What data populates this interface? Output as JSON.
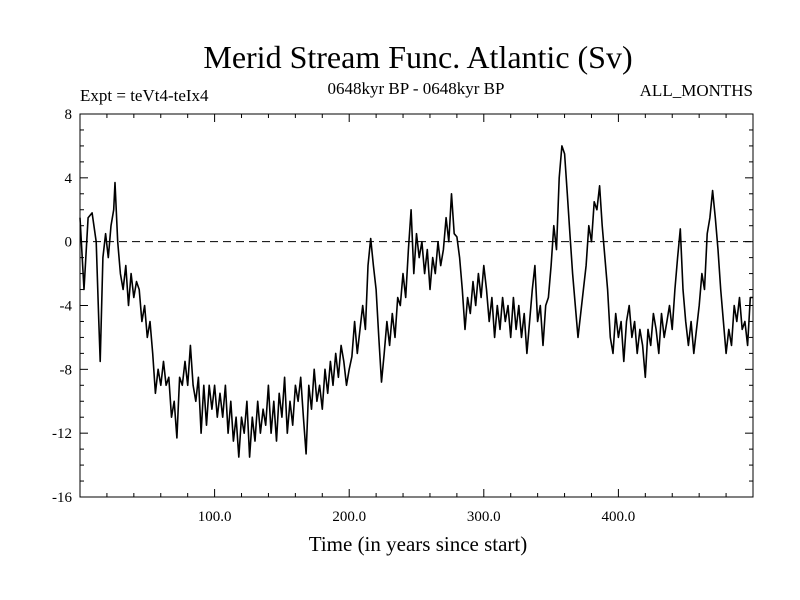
{
  "title": "Merid Stream Func. Atlantic (Sv)",
  "left_label": "Expt = teVt4-teIx4",
  "center_label": "0648kyr BP - 0648kyr BP",
  "right_label": "ALL_MONTHS",
  "chart_data": {
    "type": "line",
    "title": "Merid Stream Func. Atlantic (Sv)",
    "xlabel": "Time (in years since start)",
    "ylabel": "",
    "xlim": [
      0,
      500
    ],
    "ylim": [
      -16,
      8
    ],
    "x_ticks": [
      100,
      200,
      300,
      400
    ],
    "x_tick_labels": [
      "100.0",
      "200.0",
      "300.0",
      "400.0"
    ],
    "y_ticks": [
      8,
      4,
      0,
      -4,
      -8,
      -12,
      -16
    ],
    "y_tick_labels": [
      "8",
      "4",
      "0",
      "-4",
      "-8",
      "-12",
      "-16"
    ],
    "reference_line": {
      "y": 0,
      "style": "dashed"
    },
    "grid": false,
    "series": [
      {
        "points": [
          [
            0,
            1.5
          ],
          [
            3,
            -3
          ],
          [
            6,
            1.5
          ],
          [
            9,
            1.8
          ],
          [
            12,
            0
          ],
          [
            14,
            -5
          ],
          [
            15,
            -7.5
          ],
          [
            17,
            -1
          ],
          [
            19,
            0.5
          ],
          [
            21,
            -1
          ],
          [
            23,
            1
          ],
          [
            25,
            2
          ],
          [
            26,
            3.7
          ],
          [
            28,
            0
          ],
          [
            30,
            -2
          ],
          [
            32,
            -3
          ],
          [
            34,
            -1.5
          ],
          [
            36,
            -4
          ],
          [
            38,
            -2
          ],
          [
            40,
            -3.5
          ],
          [
            42,
            -2.5
          ],
          [
            44,
            -3
          ],
          [
            46,
            -5
          ],
          [
            48,
            -4
          ],
          [
            50,
            -6
          ],
          [
            52,
            -5
          ],
          [
            54,
            -7
          ],
          [
            56,
            -9.5
          ],
          [
            58,
            -8
          ],
          [
            60,
            -9
          ],
          [
            62,
            -7.5
          ],
          [
            64,
            -9
          ],
          [
            66,
            -8.5
          ],
          [
            68,
            -11
          ],
          [
            70,
            -10
          ],
          [
            72,
            -12.3
          ],
          [
            74,
            -8.5
          ],
          [
            76,
            -9
          ],
          [
            78,
            -7.5
          ],
          [
            80,
            -9
          ],
          [
            82,
            -6.5
          ],
          [
            84,
            -9
          ],
          [
            86,
            -10
          ],
          [
            88,
            -8.5
          ],
          [
            90,
            -12
          ],
          [
            92,
            -9
          ],
          [
            94,
            -11.5
          ],
          [
            96,
            -9
          ],
          [
            98,
            -10.5
          ],
          [
            100,
            -9
          ],
          [
            102,
            -11
          ],
          [
            104,
            -9.5
          ],
          [
            106,
            -11
          ],
          [
            108,
            -9
          ],
          [
            110,
            -12
          ],
          [
            112,
            -10
          ],
          [
            114,
            -12.5
          ],
          [
            116,
            -11
          ],
          [
            118,
            -13.5
          ],
          [
            120,
            -11
          ],
          [
            122,
            -12
          ],
          [
            124,
            -10
          ],
          [
            126,
            -13.5
          ],
          [
            128,
            -11
          ],
          [
            130,
            -12.5
          ],
          [
            132,
            -10
          ],
          [
            134,
            -12
          ],
          [
            136,
            -10.5
          ],
          [
            138,
            -11.5
          ],
          [
            140,
            -9
          ],
          [
            142,
            -12
          ],
          [
            144,
            -10
          ],
          [
            146,
            -12.5
          ],
          [
            148,
            -9.5
          ],
          [
            150,
            -11
          ],
          [
            152,
            -8.5
          ],
          [
            154,
            -12
          ],
          [
            156,
            -10
          ],
          [
            158,
            -11.5
          ],
          [
            160,
            -9
          ],
          [
            162,
            -10
          ],
          [
            164,
            -8.5
          ],
          [
            166,
            -11
          ],
          [
            168,
            -13.3
          ],
          [
            170,
            -9
          ],
          [
            172,
            -10.5
          ],
          [
            174,
            -8
          ],
          [
            176,
            -10
          ],
          [
            178,
            -9
          ],
          [
            180,
            -10.5
          ],
          [
            182,
            -8
          ],
          [
            184,
            -9.5
          ],
          [
            186,
            -7.5
          ],
          [
            188,
            -9
          ],
          [
            190,
            -7
          ],
          [
            192,
            -8.5
          ],
          [
            194,
            -6.5
          ],
          [
            196,
            -7.5
          ],
          [
            198,
            -9
          ],
          [
            200,
            -8
          ],
          [
            202,
            -7.2
          ],
          [
            204,
            -5
          ],
          [
            206,
            -7
          ],
          [
            208,
            -5.5
          ],
          [
            210,
            -4
          ],
          [
            212,
            -5.5
          ],
          [
            214,
            -1.5
          ],
          [
            216,
            0.2
          ],
          [
            218,
            -1.5
          ],
          [
            220,
            -3
          ],
          [
            222,
            -6
          ],
          [
            224,
            -8.8
          ],
          [
            226,
            -7
          ],
          [
            228,
            -5
          ],
          [
            230,
            -6.5
          ],
          [
            232,
            -4.5
          ],
          [
            234,
            -6
          ],
          [
            236,
            -3.5
          ],
          [
            238,
            -4
          ],
          [
            240,
            -2
          ],
          [
            242,
            -3.5
          ],
          [
            244,
            -0.5
          ],
          [
            246,
            2
          ],
          [
            248,
            -2
          ],
          [
            250,
            0.5
          ],
          [
            252,
            -1
          ],
          [
            254,
            0
          ],
          [
            256,
            -2
          ],
          [
            258,
            -0.5
          ],
          [
            260,
            -3
          ],
          [
            262,
            -1
          ],
          [
            264,
            -2
          ],
          [
            266,
            0
          ],
          [
            268,
            -1.5
          ],
          [
            270,
            -0.5
          ],
          [
            272,
            1.5
          ],
          [
            274,
            0
          ],
          [
            276,
            3
          ],
          [
            278,
            0.5
          ],
          [
            280,
            0.3
          ],
          [
            282,
            -1
          ],
          [
            284,
            -3
          ],
          [
            286,
            -5.5
          ],
          [
            288,
            -3.5
          ],
          [
            290,
            -4.5
          ],
          [
            292,
            -2.5
          ],
          [
            294,
            -4
          ],
          [
            296,
            -2
          ],
          [
            298,
            -3.5
          ],
          [
            300,
            -1.5
          ],
          [
            302,
            -3
          ],
          [
            304,
            -5
          ],
          [
            306,
            -3.5
          ],
          [
            308,
            -6
          ],
          [
            310,
            -4
          ],
          [
            312,
            -5.5
          ],
          [
            314,
            -3.5
          ],
          [
            316,
            -5
          ],
          [
            318,
            -4
          ],
          [
            320,
            -6
          ],
          [
            322,
            -3.5
          ],
          [
            324,
            -5.5
          ],
          [
            326,
            -4
          ],
          [
            328,
            -6
          ],
          [
            330,
            -4.5
          ],
          [
            332,
            -7
          ],
          [
            334,
            -5
          ],
          [
            336,
            -3
          ],
          [
            338,
            -1.5
          ],
          [
            340,
            -5
          ],
          [
            342,
            -4
          ],
          [
            344,
            -6.5
          ],
          [
            346,
            -4
          ],
          [
            348,
            -3.5
          ],
          [
            350,
            -1.5
          ],
          [
            352,
            1
          ],
          [
            354,
            -0.5
          ],
          [
            356,
            4
          ],
          [
            358,
            6
          ],
          [
            360,
            5.5
          ],
          [
            362,
            3
          ],
          [
            364,
            0.5
          ],
          [
            366,
            -2
          ],
          [
            368,
            -4
          ],
          [
            370,
            -6
          ],
          [
            372,
            -4.5
          ],
          [
            374,
            -3
          ],
          [
            376,
            -1.5
          ],
          [
            378,
            1
          ],
          [
            380,
            0
          ],
          [
            382,
            2.5
          ],
          [
            384,
            2
          ],
          [
            386,
            3.5
          ],
          [
            388,
            1
          ],
          [
            390,
            -1
          ],
          [
            392,
            -3
          ],
          [
            394,
            -6
          ],
          [
            396,
            -7
          ],
          [
            398,
            -4.5
          ],
          [
            400,
            -6
          ],
          [
            402,
            -5
          ],
          [
            404,
            -7.5
          ],
          [
            406,
            -5
          ],
          [
            408,
            -4
          ],
          [
            410,
            -6
          ],
          [
            412,
            -5
          ],
          [
            414,
            -7
          ],
          [
            416,
            -5.5
          ],
          [
            418,
            -6.5
          ],
          [
            420,
            -8.5
          ],
          [
            422,
            -5.5
          ],
          [
            424,
            -6.5
          ],
          [
            426,
            -4.5
          ],
          [
            428,
            -5.5
          ],
          [
            430,
            -7
          ],
          [
            432,
            -4.5
          ],
          [
            434,
            -6
          ],
          [
            436,
            -5
          ],
          [
            438,
            -4
          ],
          [
            440,
            -5.5
          ],
          [
            442,
            -3
          ],
          [
            444,
            -1
          ],
          [
            446,
            0.8
          ],
          [
            448,
            -3
          ],
          [
            450,
            -5
          ],
          [
            452,
            -6.5
          ],
          [
            454,
            -5
          ],
          [
            456,
            -7
          ],
          [
            458,
            -5.5
          ],
          [
            460,
            -4
          ],
          [
            462,
            -2
          ],
          [
            464,
            -3
          ],
          [
            466,
            0.5
          ],
          [
            468,
            1.5
          ],
          [
            470,
            3.2
          ],
          [
            472,
            1.5
          ],
          [
            474,
            -0.5
          ],
          [
            476,
            -3
          ],
          [
            478,
            -5
          ],
          [
            480,
            -7
          ],
          [
            482,
            -5.5
          ],
          [
            484,
            -6.5
          ],
          [
            486,
            -4
          ],
          [
            488,
            -5
          ],
          [
            490,
            -3.5
          ],
          [
            492,
            -5.5
          ],
          [
            494,
            -5
          ],
          [
            496,
            -6.5
          ],
          [
            498,
            -3.5
          ],
          [
            500,
            -3.5
          ]
        ]
      }
    ]
  }
}
